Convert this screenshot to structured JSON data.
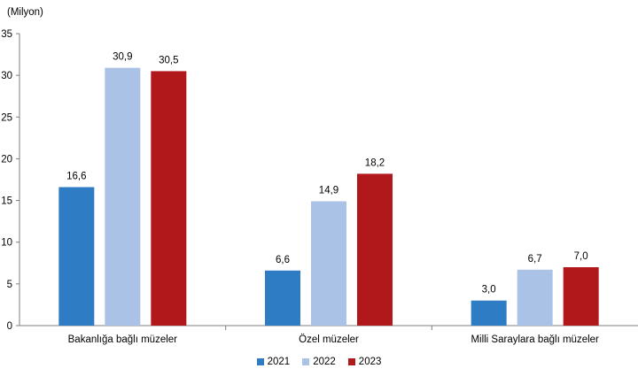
{
  "chart_data": {
    "type": "bar",
    "unit_label": "(Milyon)",
    "categories": [
      "Bakanlığa bağlı müzeler",
      "Özel müzeler",
      "Milli Saraylara bağlı müzeler"
    ],
    "series": [
      {
        "name": "2021",
        "color": "#2e7dc4",
        "values": [
          16.6,
          6.6,
          3.0
        ],
        "labels": [
          "16,6",
          "6,6",
          "3,0"
        ]
      },
      {
        "name": "2022",
        "color": "#a9c2e5",
        "values": [
          30.9,
          14.9,
          6.7
        ],
        "labels": [
          "30,9",
          "14,9",
          "6,7"
        ]
      },
      {
        "name": "2023",
        "color": "#b0181b",
        "values": [
          30.5,
          18.2,
          7.0
        ],
        "labels": [
          "30,5",
          "18,2",
          "7,0"
        ]
      }
    ],
    "ylim": [
      0,
      35
    ],
    "yticks": [
      0,
      5,
      10,
      15,
      20,
      25,
      30,
      35
    ],
    "grid": false,
    "legend_position": "bottom-center"
  }
}
